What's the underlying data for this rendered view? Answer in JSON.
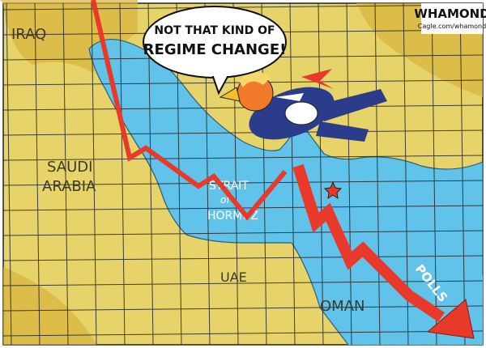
{
  "cartoon": {
    "speech_bubble": {
      "line1": "NOT THAT KIND OF",
      "line2": "REGIME CHANGE!"
    },
    "map_labels": {
      "iraq": "IRAQ",
      "saudi_line1": "SAUDI",
      "saudi_line2": "ARABIA",
      "strait_line1": "STRAIT",
      "strait_line2": "of",
      "strait_line3": "HORMUZ",
      "uae": "UAE",
      "oman": "OMAN"
    },
    "arrow_label": "POLLS",
    "signature": "WHAMOND",
    "credit": "Cagle.com/whamond",
    "colors": {
      "land": "#e6d46a",
      "water": "#62c3ea",
      "arrow": "#e8392a",
      "grid": "#222222"
    }
  }
}
